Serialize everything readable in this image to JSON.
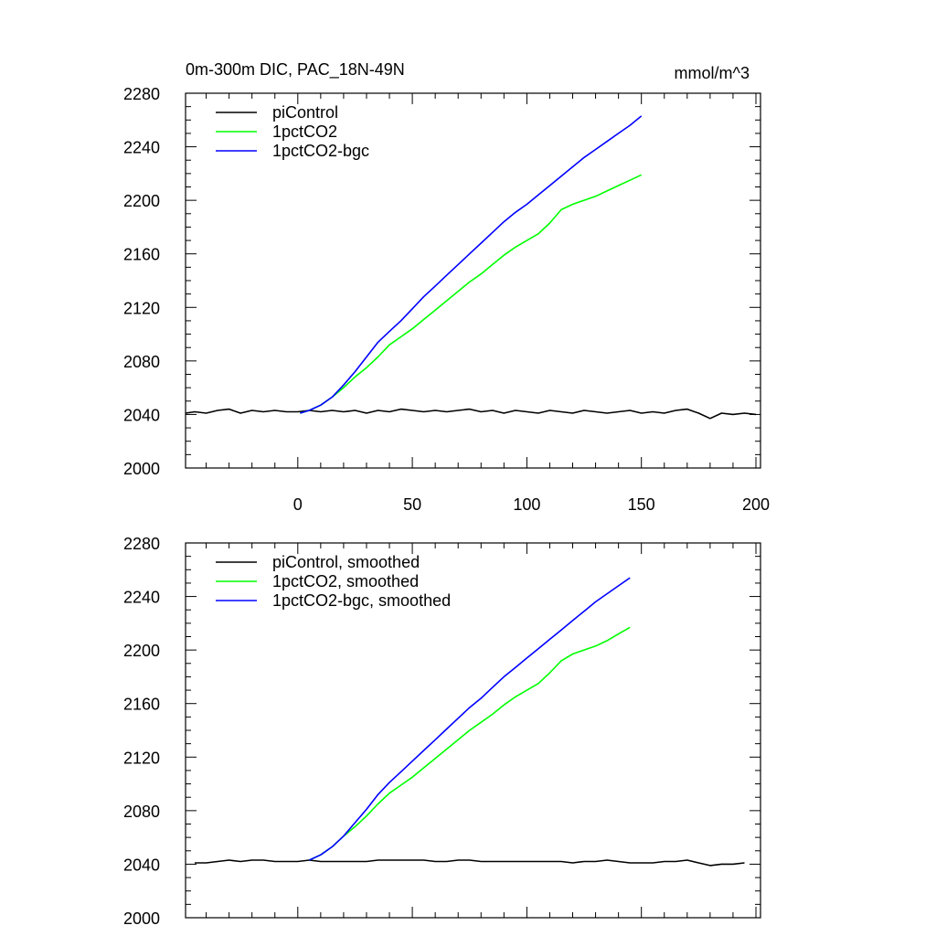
{
  "figure": {
    "title_left": "0m-300m DIC, PAC_18N-49N",
    "title_right": "mmol/m^3"
  },
  "chart_data": [
    {
      "type": "line",
      "title": "0m-300m DIC, PAC_18N-49N",
      "units": "mmol/m^3",
      "xlim": [
        -49,
        202
      ],
      "ylim": [
        2000,
        2280
      ],
      "x_ticks": [
        0,
        50,
        100,
        150,
        200
      ],
      "x_tick_labels": [
        "0",
        "50",
        "100",
        "150",
        "200"
      ],
      "y_ticks": [
        2000,
        2040,
        2080,
        2120,
        2160,
        2200,
        2240,
        2280
      ],
      "y_tick_labels": [
        "2000",
        "2040",
        "2080",
        "2120",
        "2160",
        "2200",
        "2240",
        "2280"
      ],
      "legend_position": "top-left",
      "series": [
        {
          "name": "piControl",
          "color": "#000000",
          "x": [
            -49,
            -45,
            -40,
            -35,
            -30,
            -25,
            -20,
            -15,
            -10,
            -5,
            0,
            5,
            10,
            15,
            20,
            25,
            30,
            35,
            40,
            45,
            50,
            55,
            60,
            65,
            70,
            75,
            80,
            85,
            90,
            95,
            100,
            105,
            110,
            115,
            120,
            125,
            130,
            135,
            140,
            145,
            150,
            155,
            160,
            165,
            170,
            175,
            180,
            185,
            190,
            195,
            200
          ],
          "y": [
            2041,
            2042,
            2041,
            2043,
            2044,
            2041,
            2043,
            2042,
            2043,
            2042,
            2042,
            2043,
            2042,
            2043,
            2042,
            2043,
            2041,
            2043,
            2042,
            2044,
            2043,
            2042,
            2043,
            2042,
            2043,
            2044,
            2042,
            2043,
            2041,
            2043,
            2042,
            2041,
            2043,
            2042,
            2041,
            2043,
            2042,
            2041,
            2042,
            2043,
            2041,
            2042,
            2041,
            2043,
            2044,
            2041,
            2037,
            2041,
            2040,
            2041,
            2040
          ]
        },
        {
          "name": "1pctCO2",
          "color": "#00ff00",
          "x": [
            1,
            5,
            10,
            15,
            20,
            25,
            30,
            35,
            40,
            45,
            50,
            55,
            60,
            65,
            70,
            75,
            80,
            85,
            90,
            95,
            100,
            105,
            110,
            115,
            120,
            125,
            130,
            135,
            140,
            145,
            150
          ],
          "y": [
            2041,
            2043,
            2047,
            2053,
            2060,
            2068,
            2075,
            2083,
            2092,
            2098,
            2104,
            2111,
            2118,
            2125,
            2132,
            2139,
            2145,
            2152,
            2159,
            2165,
            2170,
            2175,
            2183,
            2193,
            2197,
            2200,
            2203,
            2207,
            2211,
            2215,
            2219
          ]
        },
        {
          "name": "1pctCO2-bgc",
          "color": "#0000ff",
          "x": [
            1,
            5,
            10,
            15,
            20,
            25,
            30,
            35,
            40,
            45,
            50,
            55,
            60,
            65,
            70,
            75,
            80,
            85,
            90,
            95,
            100,
            105,
            110,
            115,
            120,
            125,
            130,
            135,
            140,
            145,
            150
          ],
          "y": [
            2041,
            2043,
            2047,
            2053,
            2062,
            2072,
            2083,
            2094,
            2102,
            2110,
            2119,
            2128,
            2136,
            2144,
            2152,
            2160,
            2168,
            2176,
            2184,
            2191,
            2197,
            2204,
            2211,
            2218,
            2225,
            2232,
            2238,
            2244,
            2250,
            2256,
            2263
          ]
        }
      ]
    },
    {
      "type": "line",
      "xlim": [
        -49,
        202
      ],
      "ylim": [
        2000,
        2280
      ],
      "x_ticks": [
        0,
        50,
        100,
        150,
        200
      ],
      "y_ticks": [
        2000,
        2040,
        2080,
        2120,
        2160,
        2200,
        2240,
        2280
      ],
      "y_tick_labels": [
        "2000",
        "2040",
        "2080",
        "2120",
        "2160",
        "2200",
        "2240",
        "2280"
      ],
      "legend_position": "top-left",
      "series": [
        {
          "name": "piControl, smoothed",
          "color": "#000000",
          "x": [
            -45,
            -40,
            -35,
            -30,
            -25,
            -20,
            -15,
            -10,
            -5,
            0,
            5,
            10,
            15,
            20,
            25,
            30,
            35,
            40,
            45,
            50,
            55,
            60,
            65,
            70,
            75,
            80,
            85,
            90,
            95,
            100,
            105,
            110,
            115,
            120,
            125,
            130,
            135,
            140,
            145,
            150,
            155,
            160,
            165,
            170,
            175,
            180,
            185,
            190,
            195
          ],
          "y": [
            2041,
            2041,
            2042,
            2043,
            2042,
            2043,
            2043,
            2042,
            2042,
            2042,
            2043,
            2042,
            2042,
            2042,
            2042,
            2042,
            2043,
            2043,
            2043,
            2043,
            2043,
            2042,
            2042,
            2043,
            2043,
            2042,
            2042,
            2042,
            2042,
            2042,
            2042,
            2042,
            2042,
            2041,
            2042,
            2042,
            2043,
            2042,
            2041,
            2041,
            2041,
            2042,
            2042,
            2043,
            2041,
            2039,
            2040,
            2040,
            2041
          ]
        },
        {
          "name": "1pctCO2, smoothed",
          "color": "#00ff00",
          "x": [
            5,
            10,
            15,
            20,
            25,
            30,
            35,
            40,
            45,
            50,
            55,
            60,
            65,
            70,
            75,
            80,
            85,
            90,
            95,
            100,
            105,
            110,
            115,
            120,
            125,
            130,
            135,
            140,
            145
          ],
          "y": [
            2043,
            2047,
            2053,
            2061,
            2068,
            2076,
            2085,
            2093,
            2099,
            2105,
            2112,
            2119,
            2126,
            2133,
            2140,
            2146,
            2152,
            2159,
            2165,
            2170,
            2175,
            2183,
            2192,
            2197,
            2200,
            2203,
            2207,
            2212,
            2217
          ]
        },
        {
          "name": "1pctCO2-bgc, smoothed",
          "color": "#0000ff",
          "x": [
            5,
            10,
            15,
            20,
            25,
            30,
            35,
            40,
            45,
            50,
            55,
            60,
            65,
            70,
            75,
            80,
            85,
            90,
            95,
            100,
            105,
            110,
            115,
            120,
            125,
            130,
            135,
            140,
            145
          ],
          "y": [
            2043,
            2047,
            2053,
            2061,
            2071,
            2081,
            2092,
            2101,
            2109,
            2117,
            2125,
            2133,
            2141,
            2149,
            2157,
            2164,
            2172,
            2180,
            2187,
            2194,
            2201,
            2208,
            2215,
            2222,
            2229,
            2236,
            2242,
            2248,
            2254
          ]
        }
      ]
    }
  ]
}
